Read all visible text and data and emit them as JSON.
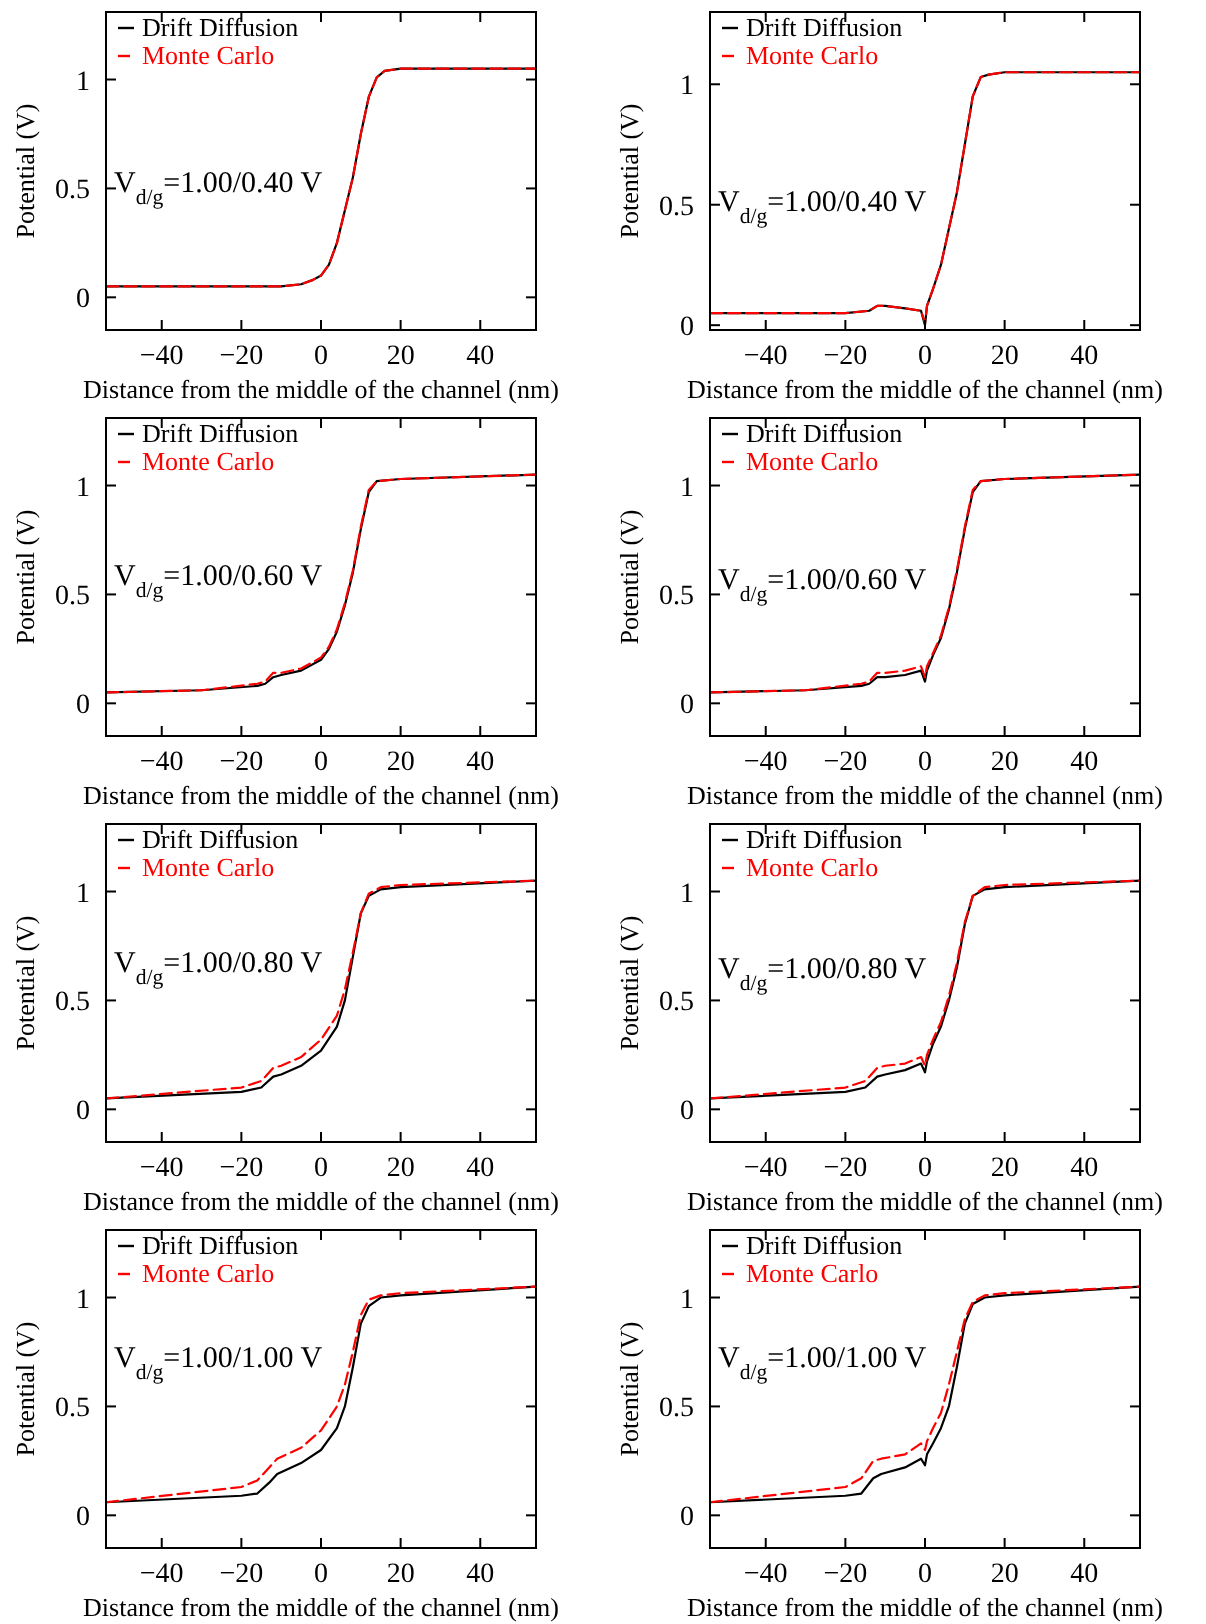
{
  "chart_data": [
    {
      "type": "line",
      "xlabel": "Distance from the middle of the channel (nm)",
      "ylabel": "Potential (V)",
      "xlim": [
        -54,
        54
      ],
      "ylim": [
        -0.15,
        1.31
      ],
      "xticks": [
        -40,
        -20,
        0,
        20,
        40
      ],
      "yticks": [
        0,
        0.5,
        1
      ],
      "legend": "top left",
      "annotations": [
        "V$_{d/g}$=1.00/0.40 V"
      ],
      "series": [
        {
          "name": "Drift Diffusion",
          "color": "#000000",
          "line_style": "solid",
          "x": [
            -54,
            -30,
            -10,
            -5,
            -2,
            0,
            2,
            4,
            6,
            8,
            10,
            12,
            14,
            16,
            20,
            54
          ],
          "values": [
            0.05,
            0.05,
            0.05,
            0.06,
            0.08,
            0.1,
            0.15,
            0.25,
            0.4,
            0.55,
            0.75,
            0.92,
            1.01,
            1.04,
            1.05,
            1.05
          ]
        },
        {
          "name": "Monte Carlo",
          "color": "#ff0000",
          "line_style": "dashed",
          "x": [
            -54,
            -30,
            -10,
            -5,
            -2,
            0,
            2,
            4,
            6,
            8,
            10,
            12,
            14,
            16,
            20,
            54
          ],
          "values": [
            0.05,
            0.05,
            0.05,
            0.06,
            0.08,
            0.1,
            0.15,
            0.25,
            0.4,
            0.55,
            0.75,
            0.92,
            1.01,
            1.04,
            1.05,
            1.05
          ]
        }
      ]
    },
    {
      "type": "line",
      "xlabel": "Distance from the middle of the channel (nm)",
      "ylabel": "Potential (V)",
      "xlim": [
        -54,
        54
      ],
      "ylim": [
        -0.02,
        1.3
      ],
      "xticks": [
        -40,
        -20,
        0,
        20,
        40
      ],
      "yticks": [
        0,
        0.5,
        1
      ],
      "legend": "top left",
      "annotations": [
        "V$_{d/g}$=1.00/0.40 V"
      ],
      "series": [
        {
          "name": "Drift Diffusion",
          "color": "#000000",
          "line_style": "solid",
          "x": [
            -54,
            -20,
            -14,
            -12,
            -10,
            -5,
            -1,
            0,
            0.5,
            2,
            4,
            6,
            8,
            10,
            12,
            14,
            16,
            20,
            54
          ],
          "values": [
            0.05,
            0.05,
            0.06,
            0.08,
            0.08,
            0.07,
            0.06,
            0.0,
            0.08,
            0.15,
            0.25,
            0.4,
            0.55,
            0.75,
            0.95,
            1.03,
            1.04,
            1.05,
            1.05
          ]
        },
        {
          "name": "Monte Carlo",
          "color": "#ff0000",
          "line_style": "dashed",
          "x": [
            -54,
            -20,
            -14,
            -12,
            -10,
            -5,
            -1,
            0,
            0.5,
            2,
            4,
            6,
            8,
            10,
            12,
            14,
            16,
            20,
            54
          ],
          "values": [
            0.05,
            0.05,
            0.06,
            0.08,
            0.08,
            0.07,
            0.06,
            0.01,
            0.08,
            0.15,
            0.25,
            0.4,
            0.55,
            0.75,
            0.95,
            1.03,
            1.04,
            1.05,
            1.05
          ]
        }
      ]
    },
    {
      "type": "line",
      "xlabel": "Distance from the middle of the channel (nm)",
      "ylabel": "Potential (V)",
      "xlim": [
        -54,
        54
      ],
      "ylim": [
        -0.15,
        1.31
      ],
      "xticks": [
        -40,
        -20,
        0,
        20,
        40
      ],
      "yticks": [
        0,
        0.5,
        1
      ],
      "legend": "top left",
      "annotations": [
        "V$_{d/g}$=1.00/0.60 V"
      ],
      "series": [
        {
          "name": "Drift Diffusion",
          "color": "#000000",
          "line_style": "solid",
          "x": [
            -54,
            -30,
            -16,
            -14,
            -12,
            -10,
            -5,
            0,
            2,
            4,
            6,
            8,
            10,
            12,
            14,
            20,
            54
          ],
          "values": [
            0.05,
            0.06,
            0.08,
            0.09,
            0.12,
            0.13,
            0.15,
            0.2,
            0.25,
            0.33,
            0.45,
            0.6,
            0.8,
            0.97,
            1.02,
            1.03,
            1.05
          ]
        },
        {
          "name": "Monte Carlo",
          "color": "#ff0000",
          "line_style": "dashed",
          "x": [
            -54,
            -30,
            -16,
            -14,
            -12,
            -10,
            -5,
            0,
            2,
            4,
            6,
            8,
            10,
            12,
            14,
            20,
            54
          ],
          "values": [
            0.05,
            0.06,
            0.09,
            0.1,
            0.14,
            0.14,
            0.16,
            0.21,
            0.26,
            0.34,
            0.46,
            0.61,
            0.81,
            0.98,
            1.02,
            1.03,
            1.05
          ]
        }
      ]
    },
    {
      "type": "line",
      "xlabel": "Distance from the middle of the channel (nm)",
      "ylabel": "Potential (V)",
      "xlim": [
        -54,
        54
      ],
      "ylim": [
        -0.15,
        1.31
      ],
      "xticks": [
        -40,
        -20,
        0,
        20,
        40
      ],
      "yticks": [
        0,
        0.5,
        1
      ],
      "legend": "top left",
      "annotations": [
        "V$_{d/g}$=1.00/0.60 V"
      ],
      "series": [
        {
          "name": "Drift Diffusion",
          "color": "#000000",
          "line_style": "solid",
          "x": [
            -54,
            -30,
            -16,
            -14,
            -12,
            -10,
            -5,
            -1,
            0,
            0.5,
            2,
            4,
            6,
            8,
            10,
            12,
            14,
            20,
            54
          ],
          "values": [
            0.05,
            0.06,
            0.08,
            0.09,
            0.12,
            0.12,
            0.13,
            0.15,
            0.1,
            0.15,
            0.22,
            0.3,
            0.43,
            0.6,
            0.8,
            0.97,
            1.02,
            1.03,
            1.05
          ]
        },
        {
          "name": "Monte Carlo",
          "color": "#ff0000",
          "line_style": "dashed",
          "x": [
            -54,
            -30,
            -16,
            -14,
            -12,
            -10,
            -5,
            -1,
            0,
            0.5,
            2,
            4,
            6,
            8,
            10,
            12,
            14,
            20,
            54
          ],
          "values": [
            0.05,
            0.06,
            0.09,
            0.1,
            0.14,
            0.14,
            0.15,
            0.17,
            0.12,
            0.17,
            0.23,
            0.31,
            0.44,
            0.61,
            0.81,
            0.98,
            1.02,
            1.03,
            1.05
          ]
        }
      ]
    },
    {
      "type": "line",
      "xlabel": "Distance from the middle of the channel (nm)",
      "ylabel": "Potential (V)",
      "xlim": [
        -54,
        54
      ],
      "ylim": [
        -0.15,
        1.31
      ],
      "xticks": [
        -40,
        -20,
        0,
        20,
        40
      ],
      "yticks": [
        0,
        0.5,
        1
      ],
      "legend": "top left",
      "annotations": [
        "V$_{d/g}$=1.00/0.80 V"
      ],
      "series": [
        {
          "name": "Drift Diffusion",
          "color": "#000000",
          "line_style": "solid",
          "x": [
            -54,
            -20,
            -15,
            -12,
            -10,
            -5,
            0,
            4,
            6,
            8,
            10,
            12,
            15,
            20,
            54
          ],
          "values": [
            0.05,
            0.08,
            0.1,
            0.15,
            0.16,
            0.2,
            0.27,
            0.38,
            0.5,
            0.7,
            0.9,
            0.98,
            1.01,
            1.02,
            1.05
          ]
        },
        {
          "name": "Monte Carlo",
          "color": "#ff0000",
          "line_style": "dashed",
          "x": [
            -54,
            -20,
            -15,
            -12,
            -10,
            -5,
            0,
            4,
            6,
            8,
            10,
            12,
            15,
            20,
            54
          ],
          "values": [
            0.05,
            0.1,
            0.13,
            0.19,
            0.2,
            0.24,
            0.32,
            0.43,
            0.55,
            0.72,
            0.9,
            0.99,
            1.02,
            1.03,
            1.05
          ]
        }
      ]
    },
    {
      "type": "line",
      "xlabel": "Distance from the middle of the channel (nm)",
      "ylabel": "Potential (V)",
      "xlim": [
        -54,
        54
      ],
      "ylim": [
        -0.15,
        1.31
      ],
      "xticks": [
        -40,
        -20,
        0,
        20,
        40
      ],
      "yticks": [
        0,
        0.5,
        1
      ],
      "legend": "top left",
      "annotations": [
        "V$_{d/g}$=1.00/0.80 V"
      ],
      "series": [
        {
          "name": "Drift Diffusion",
          "color": "#000000",
          "line_style": "solid",
          "x": [
            -54,
            -20,
            -15,
            -12,
            -10,
            -5,
            -1,
            0,
            0.5,
            2,
            4,
            6,
            8,
            10,
            12,
            15,
            20,
            54
          ],
          "values": [
            0.05,
            0.08,
            0.1,
            0.15,
            0.16,
            0.18,
            0.21,
            0.17,
            0.22,
            0.3,
            0.38,
            0.5,
            0.65,
            0.85,
            0.98,
            1.01,
            1.02,
            1.05
          ]
        },
        {
          "name": "Monte Carlo",
          "color": "#ff0000",
          "line_style": "dashed",
          "x": [
            -54,
            -20,
            -15,
            -12,
            -10,
            -5,
            -1,
            0,
            0.5,
            2,
            4,
            6,
            8,
            10,
            12,
            15,
            20,
            54
          ],
          "values": [
            0.05,
            0.1,
            0.13,
            0.19,
            0.2,
            0.21,
            0.24,
            0.2,
            0.25,
            0.32,
            0.4,
            0.52,
            0.67,
            0.86,
            0.98,
            1.02,
            1.03,
            1.05
          ]
        }
      ]
    },
    {
      "type": "line",
      "xlabel": "Distance from the middle of the channel (nm)",
      "ylabel": "Potential (V)",
      "xlim": [
        -54,
        54
      ],
      "ylim": [
        -0.15,
        1.31
      ],
      "xticks": [
        -40,
        -20,
        0,
        20,
        40
      ],
      "yticks": [
        0,
        0.5,
        1
      ],
      "legend": "top left",
      "annotations": [
        "V$_{d/g}$=1.00/1.00 V"
      ],
      "series": [
        {
          "name": "Drift Diffusion",
          "color": "#000000",
          "line_style": "solid",
          "x": [
            -54,
            -20,
            -16,
            -13,
            -11,
            -5,
            0,
            4,
            6,
            8,
            10,
            12,
            15,
            20,
            54
          ],
          "values": [
            0.06,
            0.09,
            0.1,
            0.15,
            0.19,
            0.24,
            0.3,
            0.4,
            0.5,
            0.68,
            0.88,
            0.96,
            1.0,
            1.01,
            1.05
          ]
        },
        {
          "name": "Monte Carlo",
          "color": "#ff0000",
          "line_style": "dashed",
          "x": [
            -54,
            -20,
            -16,
            -13,
            -11,
            -5,
            0,
            4,
            6,
            8,
            10,
            12,
            15,
            20,
            54
          ],
          "values": [
            0.06,
            0.13,
            0.16,
            0.22,
            0.26,
            0.31,
            0.39,
            0.5,
            0.6,
            0.75,
            0.92,
            0.99,
            1.01,
            1.02,
            1.05
          ]
        }
      ]
    },
    {
      "type": "line",
      "xlabel": "Distance from the middle of the channel (nm)",
      "ylabel": "Potential (V)",
      "xlim": [
        -54,
        54
      ],
      "ylim": [
        -0.15,
        1.31
      ],
      "xticks": [
        -40,
        -20,
        0,
        20,
        40
      ],
      "yticks": [
        0,
        0.5,
        1
      ],
      "legend": "top left",
      "annotations": [
        "V$_{d/g}$=1.00/1.00 V"
      ],
      "series": [
        {
          "name": "Drift Diffusion",
          "color": "#000000",
          "line_style": "solid",
          "x": [
            -54,
            -20,
            -16,
            -13,
            -11,
            -5,
            -1,
            0,
            0.5,
            2,
            4,
            6,
            8,
            10,
            12,
            15,
            20,
            54
          ],
          "values": [
            0.06,
            0.09,
            0.1,
            0.17,
            0.19,
            0.22,
            0.26,
            0.23,
            0.28,
            0.33,
            0.4,
            0.5,
            0.68,
            0.88,
            0.97,
            1.0,
            1.01,
            1.05
          ]
        },
        {
          "name": "Monte Carlo",
          "color": "#ff0000",
          "line_style": "dashed",
          "x": [
            -54,
            -20,
            -16,
            -13,
            -11,
            -5,
            -1,
            0,
            0.5,
            2,
            4,
            6,
            8,
            10,
            12,
            15,
            20,
            54
          ],
          "values": [
            0.06,
            0.13,
            0.17,
            0.25,
            0.26,
            0.28,
            0.33,
            0.3,
            0.34,
            0.4,
            0.47,
            0.6,
            0.75,
            0.9,
            0.98,
            1.01,
            1.02,
            1.05
          ]
        }
      ]
    }
  ]
}
